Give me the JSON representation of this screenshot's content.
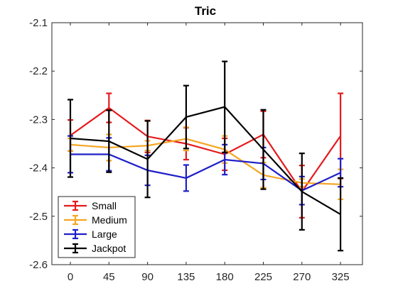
{
  "chart_data": {
    "type": "line",
    "title": "Tric",
    "xlabel": "",
    "ylabel": "",
    "categories": [
      "0",
      "45",
      "90",
      "135",
      "180",
      "225",
      "270",
      "325"
    ],
    "ylim": [
      -2.6,
      -2.1
    ],
    "yticks": [
      "-2.1",
      "-2.2",
      "-2.3",
      "-2.4",
      "-2.5",
      "-2.6"
    ],
    "ytick_values": [
      -2.1,
      -2.2,
      -2.3,
      -2.4,
      -2.5,
      -2.6
    ],
    "grid": false,
    "legend_position": "bottom-left",
    "series": [
      {
        "name": "Small",
        "color": "#e41a1c",
        "values": [
          -2.333,
          -2.276,
          -2.335,
          -2.35,
          -2.372,
          -2.331,
          -2.449,
          -2.334
        ],
        "errors": [
          0.032,
          0.03,
          0.033,
          0.033,
          0.033,
          0.048,
          0.054,
          0.088
        ]
      },
      {
        "name": "Medium",
        "color": "#f5a623",
        "values": [
          -2.352,
          -2.358,
          -2.354,
          -2.34,
          -2.362,
          -2.415,
          -2.431,
          -2.434
        ],
        "errors": [
          0.013,
          0.027,
          0.01,
          0.024,
          0.028,
          0.026,
          0.008,
          0.031
        ]
      },
      {
        "name": "Large",
        "color": "#1f1fc8",
        "values": [
          -2.372,
          -2.372,
          -2.405,
          -2.421,
          -2.383,
          -2.391,
          -2.447,
          -2.41
        ],
        "errors": [
          0.038,
          0.034,
          0.031,
          0.027,
          0.031,
          0.033,
          0.029,
          0.029
        ]
      },
      {
        "name": "Jackpot",
        "color": "#000000",
        "values": [
          -2.339,
          -2.345,
          -2.382,
          -2.295,
          -2.274,
          -2.362,
          -2.449,
          -2.496
        ],
        "errors": [
          0.08,
          0.064,
          0.079,
          0.065,
          0.094,
          0.082,
          0.079,
          0.075
        ]
      }
    ]
  }
}
